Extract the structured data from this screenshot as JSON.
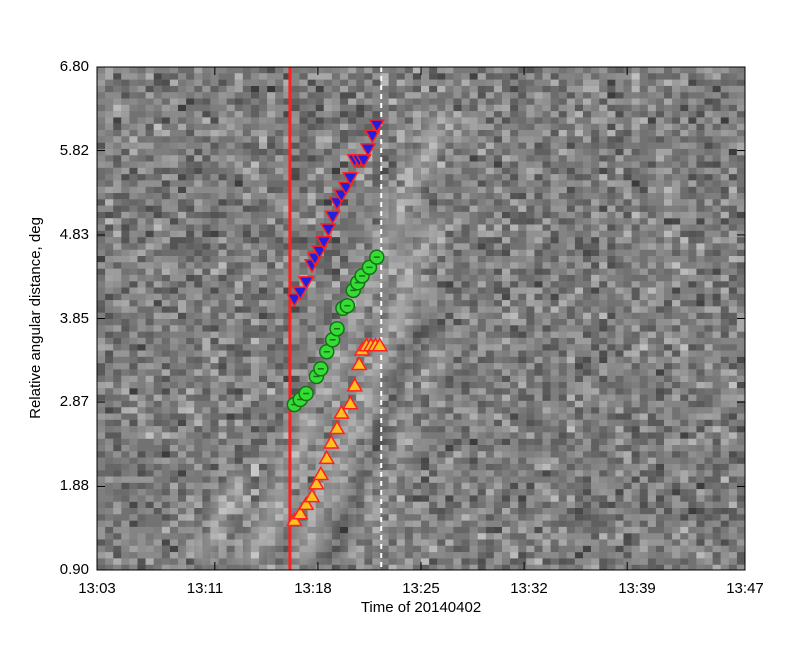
{
  "chart_data": {
    "type": "scatter",
    "title": "",
    "xlabel": "Time of 20140402",
    "ylabel": "Relative angular distance, deg",
    "x_ticks": [
      "13:03",
      "13:11",
      "13:18",
      "13:25",
      "13:32",
      "13:39",
      "13:47"
    ],
    "y_ticks": [
      "0.90",
      "1.88",
      "2.87",
      "3.85",
      "4.83",
      "5.82",
      "6.80"
    ],
    "xlim": [
      "13:03",
      "13:47"
    ],
    "ylim": [
      0.9,
      6.8
    ],
    "grid": false,
    "background": "grayscale running-difference time-distance map",
    "vertical_lines": [
      {
        "x": "13:16.1",
        "style": "solid",
        "color": "#ff2020"
      },
      {
        "x": "13:22.3",
        "style": "dashed",
        "color": "#ffffff"
      }
    ],
    "series": [
      {
        "marker": "triangle-down",
        "fill": "#2020e0",
        "edge": "#ff2020",
        "x": [
          "13:16.4",
          "13:16.8",
          "13:17.2",
          "13:17.6",
          "13:17.8",
          "13:18.1",
          "13:18.4",
          "13:18.7",
          "13:19.0",
          "13:19.3",
          "13:19.6",
          "13:19.9",
          "13:20.2",
          "13:20.5",
          "13:20.8",
          "13:21.1",
          "13:21.4",
          "13:21.7",
          "13:22.0"
        ],
        "y": [
          4.08,
          4.16,
          4.28,
          4.48,
          4.56,
          4.64,
          4.75,
          4.9,
          5.05,
          5.21,
          5.3,
          5.39,
          5.5,
          5.71,
          5.71,
          5.71,
          5.84,
          6.0,
          6.12
        ]
      },
      {
        "marker": "circle",
        "fill": "#33dd33",
        "edge": "#1a6f1a",
        "x": [
          "13:16.4",
          "13:16.8",
          "13:17.2",
          "13:17.9",
          "13:18.2",
          "13:18.6",
          "13:19.0",
          "13:19.3",
          "13:19.7",
          "13:20.0",
          "13:20.4",
          "13:20.7",
          "13:21.0",
          "13:21.5",
          "13:22.0"
        ],
        "y": [
          2.84,
          2.9,
          2.97,
          3.17,
          3.26,
          3.46,
          3.6,
          3.73,
          3.97,
          4.0,
          4.18,
          4.27,
          4.35,
          4.45,
          4.57
        ]
      },
      {
        "marker": "triangle-up",
        "fill": "#ffc020",
        "edge": "#ff2020",
        "x": [
          "13:16.4",
          "13:16.8",
          "13:17.2",
          "13:17.6",
          "13:17.9",
          "13:18.2",
          "13:18.6",
          "13:18.9",
          "13:19.3",
          "13:19.6",
          "13:20.2",
          "13:20.5",
          "13:20.8",
          "13:21.0",
          "13:21.3",
          "13:21.6",
          "13:21.9",
          "13:22.2"
        ],
        "y": [
          1.48,
          1.56,
          1.67,
          1.76,
          1.91,
          2.02,
          2.21,
          2.39,
          2.56,
          2.74,
          2.85,
          3.06,
          3.31,
          3.48,
          3.53,
          3.53,
          3.53,
          3.53
        ]
      }
    ]
  }
}
